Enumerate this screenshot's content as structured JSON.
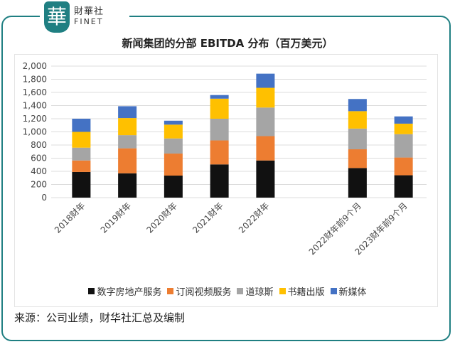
{
  "logo": {
    "mark": "華",
    "cn": "財華社",
    "en": "FINET"
  },
  "source": "来源：公司业绩，财华社汇总及编制",
  "chart_data": {
    "type": "bar",
    "stacked": true,
    "title": "新闻集团的分部 EBITDA 分布（百万美元）",
    "categories": [
      "2018财年",
      "2019财年",
      "2020财年",
      "2021财年",
      "2022财年",
      "",
      "2022财年前9个月",
      "2023财年前9个月"
    ],
    "series": [
      {
        "name": "数字房地产服务",
        "color": "#111111",
        "values": [
          390,
          370,
          335,
          505,
          565,
          null,
          450,
          340
        ]
      },
      {
        "name": "订阅视频服务",
        "color": "#ed7d31",
        "values": [
          175,
          380,
          335,
          365,
          370,
          null,
          285,
          270
        ]
      },
      {
        "name": "道琼斯",
        "color": "#a5a5a5",
        "values": [
          195,
          200,
          230,
          330,
          435,
          null,
          315,
          355
        ]
      },
      {
        "name": "书籍出版",
        "color": "#ffc000",
        "values": [
          240,
          260,
          210,
          305,
          300,
          null,
          265,
          160
        ]
      },
      {
        "name": "新媒体",
        "color": "#4472c4",
        "values": [
          200,
          180,
          60,
          55,
          215,
          null,
          185,
          110
        ]
      }
    ],
    "yticks": [
      "0",
      "200",
      "400",
      "600",
      "800",
      "1,000",
      "1,200",
      "1,400",
      "1,600",
      "1,800",
      "2,000"
    ],
    "ylim": [
      0,
      2000
    ],
    "grid": true,
    "legend": "bottom"
  }
}
